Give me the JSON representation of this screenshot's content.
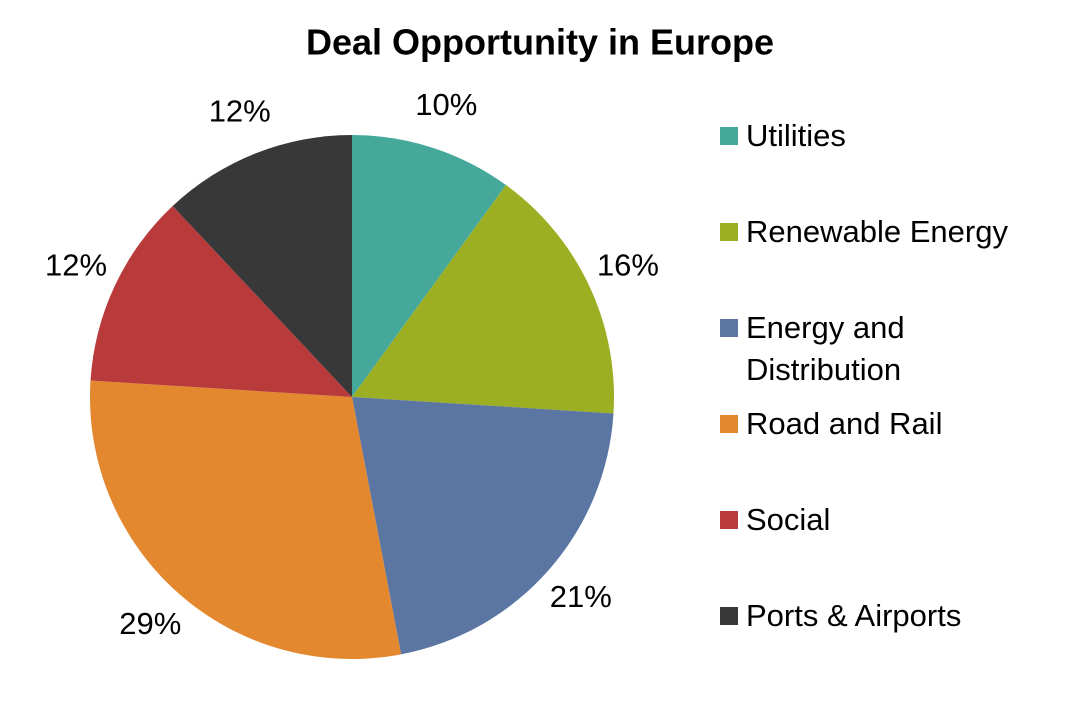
{
  "chart_data": {
    "type": "pie",
    "title": "Deal Opportunity in Europe",
    "categories": [
      "Utilities",
      "Renewable Energy",
      "Energy and Distribution",
      "Road and Rail",
      "Social",
      "Ports & Airports"
    ],
    "values": [
      10,
      16,
      21,
      29,
      12,
      12
    ],
    "value_labels": [
      "10%",
      "16%",
      "21%",
      "29%",
      "12%",
      "12%"
    ],
    "colors": [
      "#46a89b",
      "#9caf23",
      "#5b76a3",
      "#e3882e",
      "#b83a3a",
      "#383838"
    ],
    "legend": "right"
  }
}
